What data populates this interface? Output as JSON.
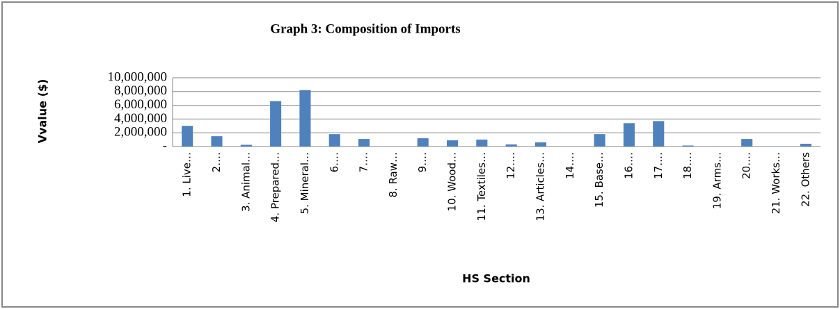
{
  "chart_data": {
    "type": "bar",
    "title": "Graph 3: Composition of Imports",
    "ylabel": "Vvalue ($)",
    "xlabel": "HS Section",
    "categories": [
      "1. Live…",
      "2.…",
      "3. Animal…",
      "4. Prepared…",
      "5. Mineral…",
      "6.…",
      "7.…",
      "8. Raw…",
      "9.…",
      "10. Wood…",
      "11. Textiles…",
      "12.…",
      "13. Articles…",
      "14.…",
      "15. Base…",
      "16.…",
      "17.…",
      "18.…",
      "19. Arms…",
      "20.…",
      "21. Works…",
      "22. Others"
    ],
    "values": [
      3000000,
      1500000,
      250000,
      6600000,
      8200000,
      1800000,
      1100000,
      20000,
      1200000,
      900000,
      1000000,
      300000,
      600000,
      20000,
      1800000,
      3400000,
      3700000,
      150000,
      30000,
      1100000,
      30000,
      400000
    ],
    "color": "#4f81bd",
    "ylim": [
      0,
      10000000
    ],
    "yticks": [
      {
        "value": 0,
        "label": "-"
      },
      {
        "value": 2000000,
        "label": "2,000,000"
      },
      {
        "value": 4000000,
        "label": "4,000,000"
      },
      {
        "value": 6000000,
        "label": "6,000,000"
      },
      {
        "value": 8000000,
        "label": "8,000,000"
      },
      {
        "value": 10000000,
        "label": "10,000,000"
      }
    ],
    "grid": true
  }
}
